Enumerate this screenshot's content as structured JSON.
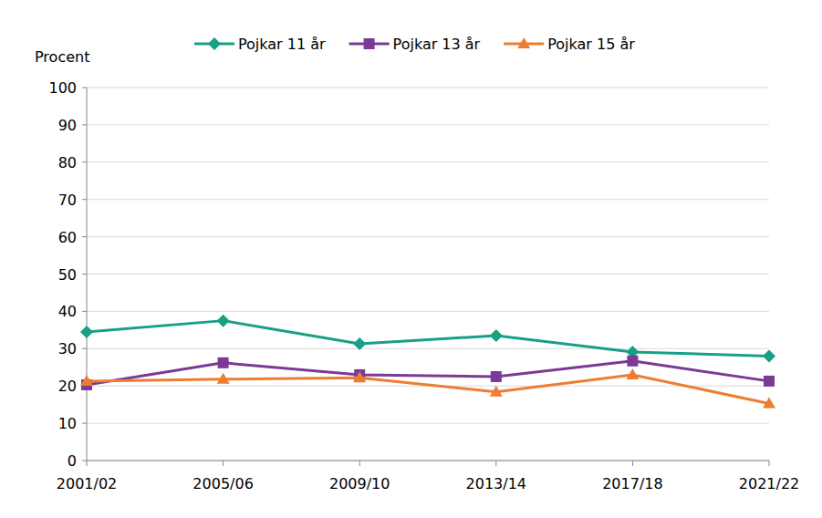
{
  "chart_data": {
    "type": "line",
    "y_label": "Procent",
    "categories": [
      "2001/02",
      "2005/06",
      "2009/10",
      "2013/14",
      "2017/18",
      "2021/22"
    ],
    "series": [
      {
        "name": "Pojkar 11 år",
        "color": "#17a085",
        "marker": "diamond",
        "values": [
          34.5,
          37.5,
          31.3,
          33.5,
          29.1,
          28.0
        ]
      },
      {
        "name": "Pojkar 13 år",
        "color": "#7b3a96",
        "marker": "square",
        "values": [
          20.3,
          26.2,
          23.0,
          22.5,
          26.7,
          21.3
        ]
      },
      {
        "name": "Pojkar 15 år",
        "color": "#ed7d31",
        "marker": "triangle",
        "values": [
          21.3,
          21.8,
          22.2,
          18.4,
          23.0,
          15.3
        ]
      }
    ],
    "ylim": [
      0,
      100
    ],
    "yticks": [
      0,
      10,
      20,
      30,
      40,
      50,
      60,
      70,
      80,
      90,
      100
    ],
    "grid": true,
    "legend": "top"
  }
}
